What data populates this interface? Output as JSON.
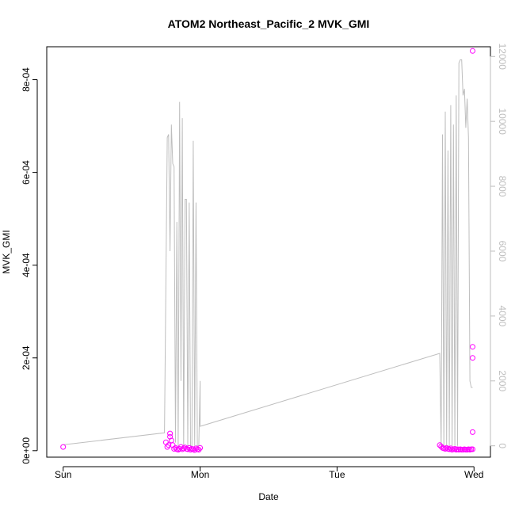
{
  "chart_data": {
    "type": "scatter",
    "title": "ATOM2 Northeast_Pacific_2 MVK_GMI",
    "xlabel": "Date",
    "ylabel": "MVK_GMI",
    "x_ticks": [
      "Sun",
      "Mon",
      "Tue",
      "Wed"
    ],
    "x_tick_values": [
      0,
      1,
      2,
      3
    ],
    "xlim": [
      -0.12,
      3.12
    ],
    "ylim": [
      -1.4e-05,
      0.000871
    ],
    "y_ticks": [
      0,
      0.0002,
      0.0004,
      0.0006,
      0.0008
    ],
    "y_tick_labels": [
      "0e+00",
      "2e-04",
      "4e-04",
      "6e-04",
      "8e-04"
    ],
    "y2lim": [
      -350,
      12300
    ],
    "y2_ticks": [
      0,
      2000,
      4000,
      6000,
      8000,
      10000,
      12000
    ],
    "y2_tick_labels": [
      "0",
      "2000",
      "4000",
      "6000",
      "8000",
      "10000",
      "12000"
    ],
    "grid": false,
    "colors": {
      "points": "#ff00ff",
      "line": "#bebebe",
      "axis": "#000000"
    },
    "series": [
      {
        "kind": "points",
        "x": [
          0.0,
          0.75,
          0.76,
          0.77,
          0.78,
          0.78,
          0.79,
          0.8,
          0.81,
          0.82,
          0.83,
          0.84,
          0.85,
          0.86,
          0.87,
          0.88,
          0.89,
          0.9,
          0.91,
          0.92,
          0.93,
          0.94,
          0.95,
          0.96,
          0.97,
          0.98,
          0.99,
          1.0,
          2.75,
          2.76,
          2.77,
          2.78,
          2.79,
          2.8,
          2.81,
          2.82,
          2.83,
          2.84,
          2.85,
          2.86,
          2.87,
          2.88,
          2.89,
          2.9,
          2.91,
          2.92,
          2.93,
          2.94,
          2.95,
          2.96,
          2.97,
          2.98,
          2.99,
          2.99,
          2.99,
          2.99,
          2.99
        ],
        "y": [
          8e-06,
          1.8e-05,
          8e-06,
          1.2e-05,
          3.7e-05,
          3e-05,
          2.2e-05,
          1.2e-05,
          4e-06,
          6e-06,
          3e-06,
          2e-06,
          4e-06,
          8e-06,
          3e-06,
          5e-06,
          7e-06,
          4e-06,
          3e-06,
          6e-06,
          2e-06,
          4e-06,
          3e-06,
          1e-06,
          5e-06,
          3e-06,
          2e-06,
          6e-06,
          1.2e-05,
          9e-06,
          6e-06,
          5e-06,
          4e-06,
          6e-06,
          4e-06,
          3e-06,
          5e-06,
          2e-06,
          3e-06,
          4e-06,
          2e-06,
          3e-06,
          2e-06,
          3e-06,
          2e-06,
          2e-06,
          3e-06,
          2e-06,
          2e-06,
          3e-06,
          2e-06,
          3e-06,
          4e-05,
          0.0002,
          0.000224,
          0.000862,
          3e-06
        ]
      },
      {
        "kind": "line",
        "axis": "right",
        "x": [
          0.0,
          0.74,
          0.76,
          0.77,
          0.78,
          0.79,
          0.8,
          0.81,
          0.82,
          0.83,
          0.84,
          0.85,
          0.86,
          0.87,
          0.88,
          0.89,
          0.9,
          0.91,
          0.92,
          0.93,
          0.94,
          0.95,
          0.96,
          0.97,
          0.98,
          0.99,
          1.0,
          1.0,
          2.75,
          2.76,
          2.77,
          2.78,
          2.79,
          2.8,
          2.81,
          2.82,
          2.83,
          2.84,
          2.85,
          2.86,
          2.87,
          2.88,
          2.89,
          2.9,
          2.91,
          2.92,
          2.93,
          2.94,
          2.95,
          2.96,
          2.97,
          2.98,
          2.99
        ],
        "y": [
          30,
          400,
          9500,
          9600,
          6000,
          9900,
          8700,
          8600,
          100,
          6900,
          0,
          10600,
          2000,
          10100,
          0,
          7600,
          7600,
          0,
          7500,
          0,
          0,
          9400,
          0,
          7500,
          0,
          0,
          2000,
          600,
          2850,
          0,
          9600,
          0,
          10300,
          0,
          9100,
          0,
          10500,
          0,
          9900,
          0,
          10800,
          0,
          11800,
          11900,
          11900,
          10800,
          11000,
          9800,
          10700,
          9500,
          2000,
          1800,
          1800
        ]
      }
    ]
  }
}
